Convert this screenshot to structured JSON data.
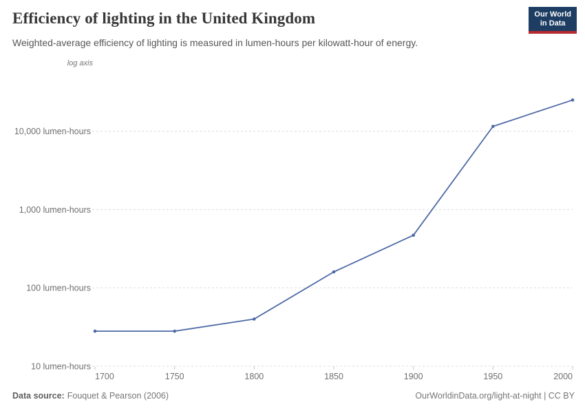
{
  "header": {
    "title": "Efficiency of lighting in the United Kingdom",
    "subtitle": "Weighted-average efficiency of lighting is measured in lumen-hours per kilowatt-hour of energy."
  },
  "logo": {
    "line1": "Our World",
    "line2": "in Data"
  },
  "axis_note": "log axis",
  "chart_data": {
    "type": "line",
    "title": "Efficiency of lighting in the United Kingdom",
    "x": [
      1700,
      1750,
      1800,
      1850,
      1900,
      1950,
      2000
    ],
    "values": [
      28,
      28,
      40,
      160,
      470,
      11500,
      25000
    ],
    "unit": "lumen-hours per kilowatt-hour",
    "y_scale": "log",
    "xlim": [
      1700,
      2000
    ],
    "ylim": [
      10,
      49000
    ],
    "x_tick_labels": [
      "1700",
      "1750",
      "1800",
      "1850",
      "1900",
      "1950",
      "2000"
    ],
    "y_ticks": [
      {
        "value": 10,
        "label": "10 lumen-hours"
      },
      {
        "value": 100,
        "label": "100 lumen-hours"
      },
      {
        "value": 1000,
        "label": "1,000 lumen-hours"
      },
      {
        "value": 10000,
        "label": "10,000 lumen-hours"
      }
    ],
    "grid": "dashed-horizontal",
    "legend_position": "none",
    "annotations": [
      "log axis"
    ]
  },
  "colors": {
    "series_blue": "#4d69a6",
    "logo_navy": "#1d3d63",
    "logo_red": "#b5292f",
    "gridline": "#dcdcdc",
    "tick_label": "#6e6e6e"
  },
  "footer": {
    "source_label": "Data source:",
    "source_text": "Fouquet & Pearson (2006)",
    "attribution": "OurWorldinData.org/light-at-night | CC BY"
  }
}
